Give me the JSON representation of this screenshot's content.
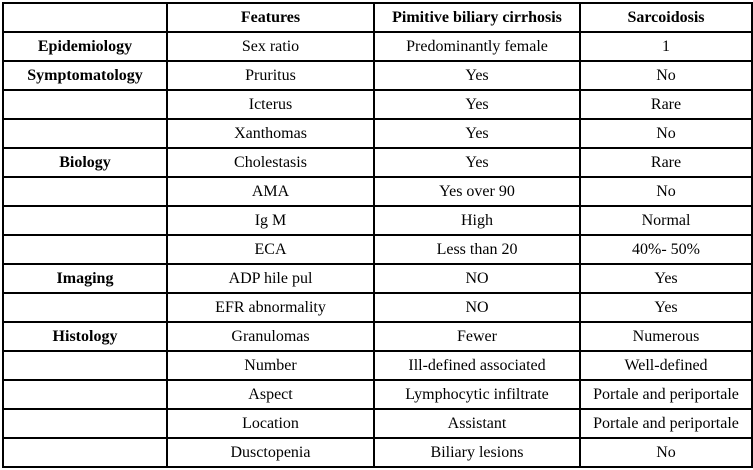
{
  "colors": {
    "background": "#ffffff",
    "border": "#000000",
    "text": "#000000"
  },
  "table": {
    "columns": [
      "",
      "Features",
      "Pimitive biliary cirrhosis",
      "Sarcoidosis"
    ],
    "rows": [
      {
        "category": "Epidemiology",
        "feature": "Sex ratio",
        "pbc": "Predominantly female",
        "sarcoidosis": "1"
      },
      {
        "category": "Symptomatology",
        "feature": "Pruritus",
        "pbc": "Yes",
        "sarcoidosis": "No"
      },
      {
        "category": "",
        "feature": "Icterus",
        "pbc": "Yes",
        "sarcoidosis": "Rare"
      },
      {
        "category": "",
        "feature": "Xanthomas",
        "pbc": "Yes",
        "sarcoidosis": "No"
      },
      {
        "category": "Biology",
        "feature": "Cholestasis",
        "pbc": "Yes",
        "sarcoidosis": "Rare"
      },
      {
        "category": "",
        "feature": "AMA",
        "pbc": "Yes over 90",
        "sarcoidosis": "No"
      },
      {
        "category": "",
        "feature": "Ig M",
        "pbc": "High",
        "sarcoidosis": "Normal"
      },
      {
        "category": "",
        "feature": "ECA",
        "pbc": "Less than 20",
        "sarcoidosis": "40%- 50%"
      },
      {
        "category": "Imaging",
        "feature": "ADP hile pul",
        "pbc": "NO",
        "sarcoidosis": "Yes"
      },
      {
        "category": "",
        "feature": "EFR abnormality",
        "pbc": "NO",
        "sarcoidosis": "Yes"
      },
      {
        "category": "Histology",
        "feature": "Granulomas",
        "pbc": "Fewer",
        "sarcoidosis": "Numerous"
      },
      {
        "category": "",
        "feature": "Number",
        "pbc": "Ill-defined associated",
        "sarcoidosis": "Well-defined"
      },
      {
        "category": "",
        "feature": "Aspect",
        "pbc": "Lymphocytic infiltrate",
        "sarcoidosis": "Portale and periportale"
      },
      {
        "category": "",
        "feature": "Location",
        "pbc": "Assistant",
        "sarcoidosis": "Portale and periportale"
      },
      {
        "category": "",
        "feature": "Dusctopenia",
        "pbc": "Biliary lesions",
        "sarcoidosis": "No"
      }
    ]
  }
}
